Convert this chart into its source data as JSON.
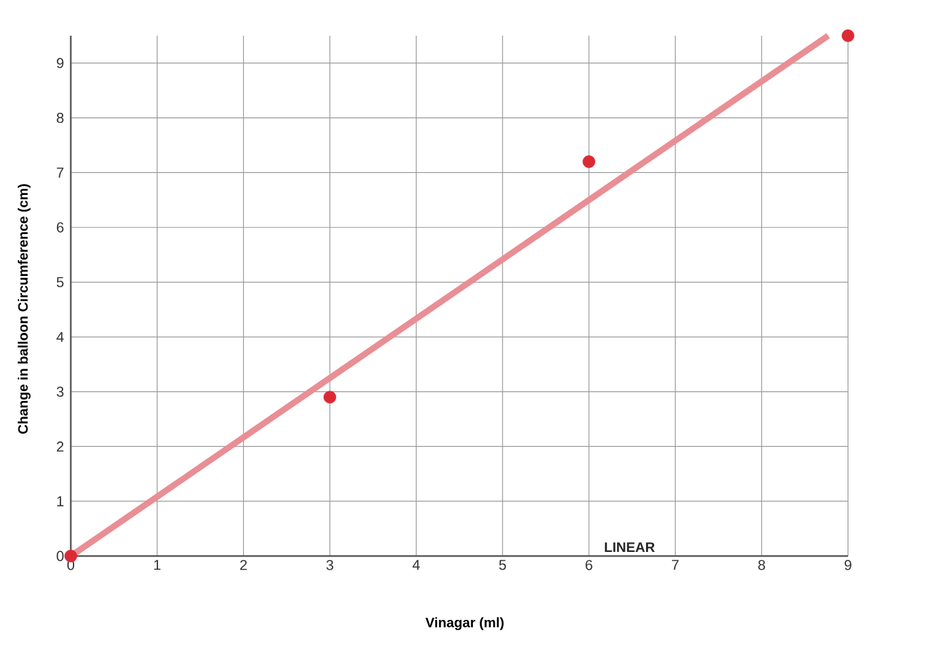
{
  "chart_data": {
    "type": "scatter",
    "xlabel": "Vinagar (ml)",
    "ylabel": "Change in balloon Circumference    (cm)",
    "xlim": [
      0,
      9
    ],
    "ylim": [
      0,
      9.5
    ],
    "xticks": [
      0,
      1,
      2,
      3,
      4,
      5,
      6,
      7,
      8,
      9
    ],
    "yticks": [
      0,
      1,
      2,
      3,
      4,
      5,
      6,
      7,
      8,
      9
    ],
    "grid": true,
    "x": [
      0,
      3,
      6,
      9
    ],
    "series": [
      {
        "marker": "circle",
        "color": "#dc2a35",
        "values": [
          0,
          2.9,
          7.2,
          9.5
        ]
      },
      {
        "type": "line",
        "marker": "none",
        "color": "#e98e94",
        "x": [
          0,
          8.77
        ],
        "values": [
          0,
          9.5
        ]
      }
    ],
    "annotations": [
      "LINEAR"
    ]
  }
}
